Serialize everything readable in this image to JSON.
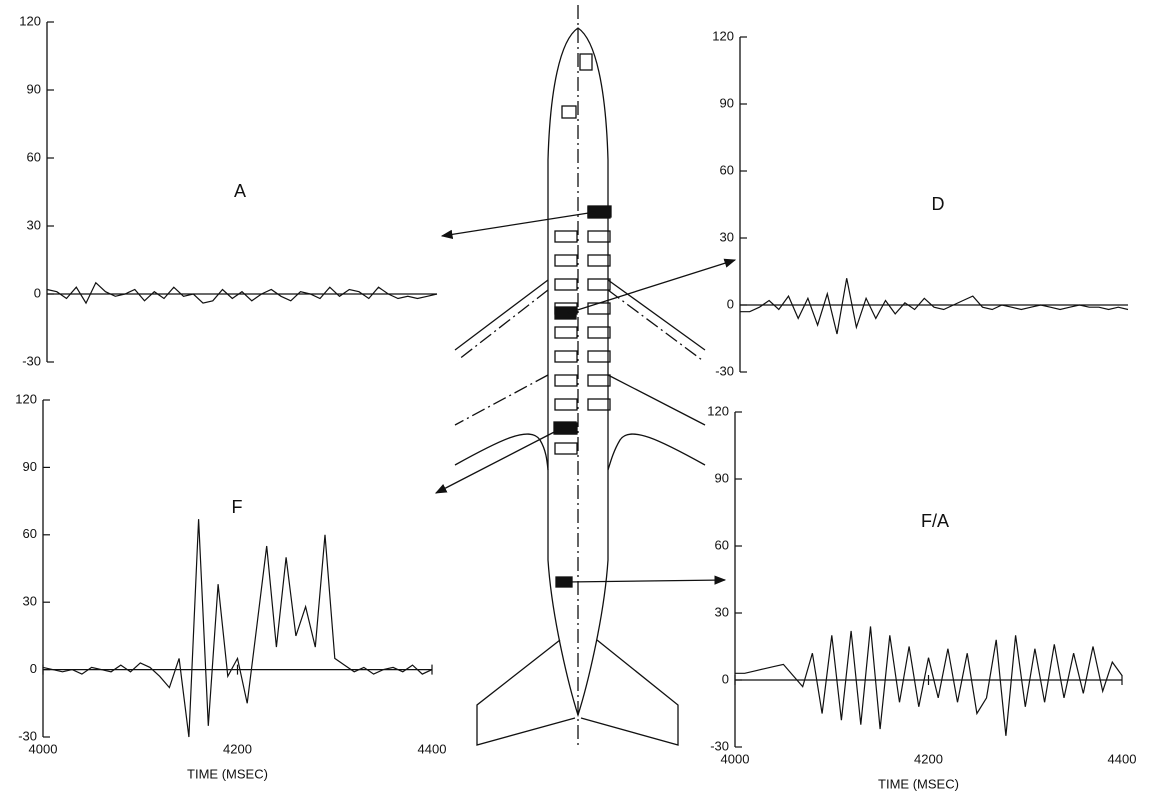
{
  "chart_data": [
    {
      "type": "line",
      "label": "A",
      "xlim": [
        4000,
        4400
      ],
      "ylim": [
        -30,
        120
      ],
      "yticks": [
        -30,
        0,
        30,
        60,
        90,
        120
      ],
      "color": "#111111",
      "x": [
        4000,
        4010,
        4020,
        4030,
        4040,
        4050,
        4060,
        4070,
        4080,
        4090,
        4100,
        4110,
        4120,
        4130,
        4140,
        4150,
        4160,
        4170,
        4180,
        4190,
        4200,
        4210,
        4220,
        4230,
        4240,
        4250,
        4260,
        4270,
        4280,
        4290,
        4300,
        4310,
        4320,
        4330,
        4340,
        4350,
        4360,
        4370,
        4380,
        4390,
        4400
      ],
      "values": [
        2,
        1,
        -2,
        3,
        -4,
        5,
        1,
        -1,
        0,
        2,
        -3,
        1,
        -2,
        3,
        -1,
        0,
        -4,
        -3,
        2,
        -2,
        1,
        -3,
        0,
        2,
        -1,
        -3,
        1,
        0,
        -2,
        3,
        -1,
        2,
        1,
        -2,
        3,
        0,
        -2,
        -1,
        -2,
        -1,
        0
      ]
    },
    {
      "type": "line",
      "label": "D",
      "xlim": [
        4000,
        4400
      ],
      "ylim": [
        -30,
        120
      ],
      "yticks": [
        -30,
        0,
        30,
        60,
        90,
        120
      ],
      "color": "#111111",
      "x": [
        4000,
        4010,
        4020,
        4030,
        4040,
        4050,
        4060,
        4070,
        4080,
        4090,
        4100,
        4110,
        4120,
        4130,
        4140,
        4150,
        4160,
        4170,
        4180,
        4190,
        4200,
        4210,
        4220,
        4230,
        4240,
        4250,
        4260,
        4270,
        4280,
        4290,
        4300,
        4310,
        4320,
        4330,
        4340,
        4350,
        4360,
        4370,
        4380,
        4390,
        4400
      ],
      "values": [
        -3,
        -3,
        -1,
        2,
        -2,
        4,
        -6,
        3,
        -9,
        5,
        -13,
        12,
        -10,
        3,
        -6,
        2,
        -4,
        1,
        -2,
        3,
        -1,
        -2,
        0,
        2,
        4,
        -1,
        -2,
        0,
        -1,
        -2,
        -1,
        0,
        -1,
        -2,
        -1,
        0,
        -1,
        -1,
        -2,
        -1,
        -2
      ]
    },
    {
      "type": "line",
      "label": "F",
      "xlim": [
        4000,
        4400
      ],
      "ylim": [
        -30,
        120
      ],
      "yticks": [
        -30,
        0,
        30,
        60,
        90,
        120
      ],
      "xticks": [
        4000,
        4200,
        4400
      ],
      "xlabel": "TIME (MSEC)",
      "color": "#111111",
      "x": [
        4000,
        4010,
        4020,
        4030,
        4040,
        4050,
        4060,
        4070,
        4080,
        4090,
        4100,
        4110,
        4120,
        4130,
        4140,
        4150,
        4160,
        4170,
        4180,
        4190,
        4200,
        4210,
        4220,
        4230,
        4240,
        4250,
        4260,
        4270,
        4280,
        4290,
        4300,
        4310,
        4320,
        4330,
        4340,
        4350,
        4360,
        4370,
        4380,
        4390,
        4400
      ],
      "values": [
        1,
        0,
        -1,
        0,
        -2,
        1,
        0,
        -1,
        2,
        -1,
        3,
        1,
        -3,
        -8,
        5,
        -30,
        67,
        -25,
        38,
        -3,
        5,
        -15,
        20,
        55,
        10,
        50,
        15,
        28,
        10,
        60,
        5,
        2,
        -1,
        1,
        -2,
        0,
        1,
        -1,
        2,
        -2,
        0
      ]
    },
    {
      "type": "line",
      "label": "F/A",
      "xlim": [
        4000,
        4400
      ],
      "ylim": [
        -30,
        120
      ],
      "yticks": [
        -30,
        0,
        30,
        60,
        90,
        120
      ],
      "xticks": [
        4000,
        4200,
        4400
      ],
      "xlabel": "TIME (MSEC)",
      "color": "#111111",
      "x": [
        4000,
        4010,
        4020,
        4030,
        4040,
        4050,
        4060,
        4070,
        4080,
        4090,
        4100,
        4110,
        4120,
        4130,
        4140,
        4150,
        4160,
        4170,
        4180,
        4190,
        4200,
        4210,
        4220,
        4230,
        4240,
        4250,
        4260,
        4270,
        4280,
        4290,
        4300,
        4310,
        4320,
        4330,
        4340,
        4350,
        4360,
        4370,
        4380,
        4390,
        4400
      ],
      "values": [
        3,
        3,
        4,
        5,
        6,
        7,
        2,
        -3,
        12,
        -15,
        20,
        -18,
        22,
        -20,
        24,
        -22,
        20,
        -10,
        15,
        -12,
        10,
        -8,
        14,
        -10,
        12,
        -15,
        -8,
        18,
        -25,
        20,
        -12,
        14,
        -10,
        16,
        -8,
        12,
        -6,
        15,
        -5,
        8,
        2
      ]
    }
  ]
}
